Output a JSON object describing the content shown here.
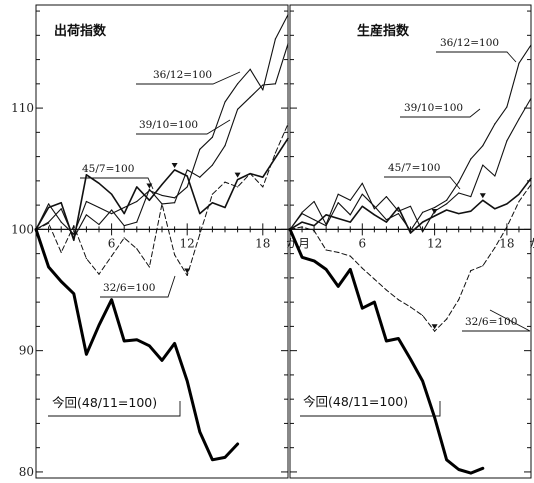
{
  "chart_data": [
    {
      "type": "line",
      "title": "出荷指数",
      "x_unit": "か月",
      "x_tick_labels": [
        "6",
        "12",
        "18"
      ],
      "y_tick_labels": [
        "80",
        "90",
        "100",
        "110"
      ],
      "ylim": [
        79.5,
        118.5
      ],
      "xlim": [
        0,
        20
      ],
      "series": [
        {
          "name": "36/12=100",
          "style": "thin",
          "x": [
            0,
            1,
            2,
            3,
            4,
            5,
            6,
            7,
            8,
            9,
            10,
            11,
            12,
            13,
            14,
            15,
            16,
            17,
            18,
            19,
            20
          ],
          "values": [
            100,
            102.1,
            100.6,
            99.6,
            102.3,
            101.8,
            101.3,
            101.8,
            102.3,
            103.2,
            102.8,
            102.6,
            103.5,
            106.6,
            107.6,
            110.5,
            112.0,
            113.2,
            111.5,
            115.7,
            117.7
          ]
        },
        {
          "name": "39/10=100",
          "style": "thin",
          "x": [
            0,
            1,
            2,
            3,
            4,
            5,
            6,
            7,
            8,
            9,
            10,
            11,
            12,
            13,
            14,
            15,
            16,
            17,
            18,
            19,
            20
          ],
          "values": [
            100,
            100.6,
            101.7,
            99.3,
            101.2,
            100.4,
            101.6,
            100.3,
            100.6,
            103.3,
            102.1,
            102.2,
            104.9,
            104.3,
            105.3,
            106.9,
            109.9,
            110.9,
            111.9,
            112.0,
            115.3
          ]
        },
        {
          "name": "45/7=100",
          "style": "medium",
          "x": [
            0,
            1,
            2,
            3,
            4,
            5,
            6,
            7,
            8,
            9,
            10,
            11,
            12,
            13,
            14,
            15,
            16,
            17,
            18,
            19,
            20
          ],
          "values": [
            100,
            101.8,
            102.2,
            99.1,
            104.5,
            103.8,
            102.9,
            101.3,
            103.5,
            102.4,
            103.7,
            104.9,
            104.4,
            101.3,
            102.2,
            101.8,
            104.1,
            104.6,
            104.3,
            105.9,
            107.5
          ]
        },
        {
          "name": "32/6=100",
          "style": "dashed",
          "x": [
            0,
            1,
            2,
            3,
            4,
            5,
            6,
            7,
            8,
            9,
            10,
            11,
            12,
            13,
            14,
            15,
            16,
            17,
            18,
            19,
            20
          ],
          "values": [
            100,
            100.5,
            98.1,
            100.3,
            97.6,
            96.3,
            97.8,
            99.3,
            98.4,
            96.9,
            102.1,
            97.9,
            96.2,
            99.6,
            102.9,
            103.9,
            103.5,
            104.6,
            103.5,
            106.3,
            108.7
          ]
        },
        {
          "name": "今回(48/11=100)",
          "style": "bold",
          "x": [
            0,
            1,
            2,
            3,
            4,
            5,
            6,
            7,
            8,
            9,
            10,
            11,
            12,
            13,
            14,
            15,
            16
          ],
          "values": [
            100,
            96.9,
            95.7,
            94.7,
            89.7,
            92.1,
            94.2,
            90.8,
            90.9,
            90.4,
            89.2,
            90.6,
            87.5,
            83.3,
            81.0,
            81.2,
            82.3
          ]
        }
      ]
    },
    {
      "type": "line",
      "title": "生産指数",
      "x_unit": "か月",
      "x_tick_labels": [
        "6",
        "12",
        "18"
      ],
      "y_tick_labels": [],
      "ylim": [
        79.5,
        118.5
      ],
      "xlim": [
        0,
        20
      ],
      "series": [
        {
          "name": "36/12=100",
          "style": "thin",
          "x": [
            0,
            1,
            2,
            3,
            4,
            5,
            6,
            7,
            8,
            9,
            10,
            11,
            12,
            13,
            14,
            15,
            16,
            17,
            18,
            19,
            20
          ],
          "values": [
            100,
            101.3,
            100.8,
            100.3,
            102.2,
            101.2,
            102.9,
            101.9,
            100.8,
            101.3,
            99.9,
            101.4,
            101.8,
            102.4,
            103.9,
            105.8,
            106.9,
            108.7,
            110.1,
            113.7,
            115.2
          ]
        },
        {
          "name": "39/10=100",
          "style": "thin",
          "x": [
            0,
            1,
            2,
            3,
            4,
            5,
            6,
            7,
            8,
            9,
            10,
            11,
            12,
            13,
            14,
            15,
            16,
            17,
            18,
            19,
            20
          ],
          "values": [
            100,
            101.4,
            102.3,
            100.4,
            102.9,
            102.4,
            103.8,
            101.7,
            102.7,
            101.5,
            101.9,
            99.8,
            101.5,
            102.1,
            103.0,
            102.7,
            105.3,
            104.4,
            107.3,
            109.1,
            110.8
          ]
        },
        {
          "name": "45/7=100",
          "style": "medium",
          "x": [
            0,
            1,
            2,
            3,
            4,
            5,
            6,
            7,
            8,
            9,
            10,
            11,
            12,
            13,
            14,
            15,
            16,
            17,
            18,
            19,
            20
          ],
          "values": [
            100,
            100.6,
            100.3,
            101.2,
            100.9,
            100.6,
            101.9,
            101.2,
            100.6,
            101.8,
            99.7,
            100.6,
            101.1,
            101.6,
            101.3,
            101.5,
            102.4,
            101.7,
            102.1,
            102.9,
            104.2
          ]
        },
        {
          "name": "32/6=100",
          "style": "dashed",
          "x": [
            0,
            1,
            2,
            3,
            4,
            5,
            6,
            7,
            8,
            9,
            10,
            11,
            12,
            13,
            14,
            15,
            16,
            17,
            18,
            19,
            20
          ],
          "values": [
            100,
            100.2,
            99.9,
            98.3,
            98.1,
            97.8,
            96.8,
            95.9,
            95.0,
            94.2,
            93.6,
            92.9,
            91.6,
            92.6,
            94.2,
            96.6,
            97.0,
            98.5,
            100.2,
            102.3,
            103.7
          ]
        },
        {
          "name": "今回(48/11=100)",
          "style": "bold",
          "x": [
            0,
            1,
            2,
            3,
            4,
            5,
            6,
            7,
            8,
            9,
            10,
            11,
            12,
            13,
            14,
            15,
            16
          ],
          "values": [
            100,
            97.7,
            97.4,
            96.7,
            95.3,
            96.7,
            93.5,
            94.0,
            90.8,
            91.0,
            89.3,
            87.5,
            84.5,
            81.0,
            80.2,
            79.9,
            80.3
          ]
        }
      ]
    }
  ]
}
